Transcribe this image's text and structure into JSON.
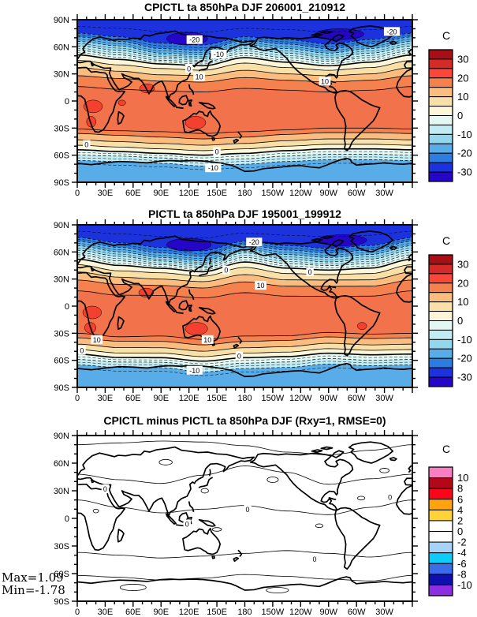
{
  "figure": {
    "description": "Three-panel global contour-map comparison of 850hPa air temperature (ta), DJF means",
    "axes": {
      "lat_tick_labels": [
        "90N",
        "60N",
        "30N",
        "0",
        "30S",
        "60S",
        "90S"
      ],
      "lon_tick_labels": [
        "0",
        "30E",
        "60E",
        "90E",
        "120E",
        "150E",
        "180",
        "150W",
        "120W",
        "90W",
        "60W",
        "30W"
      ]
    },
    "map_extra_colors": {
      "tropical_band": "#f2724c",
      "hot_patch": "#f4402f",
      "coast": "#000000"
    },
    "panels": [
      {
        "title": "CPICTL ta 850hPa DJF 206001_210912",
        "colorbar": {
          "unit": "C",
          "tick_labels": [
            "30",
            "20",
            "10",
            "0",
            "-10",
            "-20",
            "-30"
          ],
          "colors": [
            "#a50f15",
            "#d62a26",
            "#f9483a",
            "#f5824e",
            "#fbbc7f",
            "#f9e0a8",
            "#fdf6d8",
            "#e3f7f3",
            "#c1ecf3",
            "#92d7ee",
            "#58ace8",
            "#2d7ce0",
            "#1b32dd",
            "#2506c8"
          ]
        },
        "contour_labels": [
          {
            "text": "-20",
            "lon": 126,
            "lat": 68
          },
          {
            "text": "-20",
            "lon": 338,
            "lat": 77
          },
          {
            "text": "-10",
            "lon": 152,
            "lat": 52
          },
          {
            "text": "0",
            "lon": 120,
            "lat": 36
          },
          {
            "text": "10",
            "lon": 131,
            "lat": 27
          },
          {
            "text": "10",
            "lon": 266,
            "lat": 22
          },
          {
            "text": "0",
            "lon": 10,
            "lat": -48
          },
          {
            "text": "0",
            "lon": 150,
            "lat": -56
          },
          {
            "text": "-10",
            "lon": 146,
            "lat": -74
          }
        ]
      },
      {
        "title": "PICTL ta 850hPa DJF 195001_199912",
        "colorbar": {
          "unit": "C",
          "tick_labels": [
            "30",
            "20",
            "10",
            "0",
            "-10",
            "-20",
            "-30"
          ],
          "colors": [
            "#a50f15",
            "#d62a26",
            "#f9483a",
            "#f5824e",
            "#fbbc7f",
            "#f9e0a8",
            "#fdf6d8",
            "#e3f7f3",
            "#c1ecf3",
            "#92d7ee",
            "#58ace8",
            "#2d7ce0",
            "#1b32dd",
            "#2506c8"
          ]
        },
        "contour_labels": [
          {
            "text": "-20",
            "lon": 190,
            "lat": 71
          },
          {
            "text": "0",
            "lon": 160,
            "lat": 40
          },
          {
            "text": "0",
            "lon": 250,
            "lat": 38
          },
          {
            "text": "10",
            "lon": 197,
            "lat": 23
          },
          {
            "text": "10",
            "lon": 21,
            "lat": -37
          },
          {
            "text": "10",
            "lon": 140,
            "lat": -37
          },
          {
            "text": "0",
            "lon": 5,
            "lat": -49
          },
          {
            "text": "0",
            "lon": 174,
            "lat": -55
          },
          {
            "text": "-10",
            "lon": 126,
            "lat": -71
          }
        ]
      },
      {
        "title": "CPICTL minus PICTL ta 850hPa DJF (Rxy=1, RMSE=0)",
        "colorbar": {
          "unit": "C",
          "tick_labels": [
            "10",
            "8",
            "6",
            "4",
            "2",
            "0",
            "-2",
            "-4",
            "-6",
            "-8",
            "-10"
          ],
          "colors": [
            "#f97fc4",
            "#b50717",
            "#fb0618",
            "#ffa40e",
            "#fdd338",
            "#ffffff",
            "#ffffff",
            "#a8d3f8",
            "#0ecbfa",
            "#3a6be8",
            "#0f0faf",
            "#8b2fe0"
          ]
        },
        "contour_labels": [
          {
            "text": "0",
            "lon": 183,
            "lat": 10
          },
          {
            "text": "0",
            "lon": 336,
            "lat": 23
          },
          {
            "text": "0",
            "lon": 30,
            "lat": 32
          },
          {
            "text": "0",
            "lon": 118,
            "lat": -6
          },
          {
            "text": "0",
            "lon": 255,
            "lat": -44
          }
        ],
        "stats": {
          "max": "Max=1.09",
          "min": "Min=-1.78"
        }
      }
    ]
  },
  "chart_data": [
    {
      "type": "heatmap",
      "subtype": "filled_contour_world_map",
      "title": "CPICTL ta 850hPa DJF 206001_210912",
      "variable": "ta",
      "pressure_level": "850hPa",
      "season": "DJF",
      "period": "206001_210912",
      "units": "C",
      "x_ticks": [
        "0",
        "30E",
        "60E",
        "90E",
        "120E",
        "150E",
        "180",
        "150W",
        "120W",
        "90W",
        "60W",
        "30W"
      ],
      "y_ticks": [
        "90N",
        "60N",
        "30N",
        "0",
        "30S",
        "60S",
        "90S"
      ],
      "colorbar_labels": [
        30,
        20,
        10,
        0,
        -10,
        -20,
        -30
      ],
      "contour_interval": 5,
      "visible_contour_label_values": [
        -20,
        -10,
        0,
        10
      ],
      "field_summary": "Zonal temperature field: Arctic (DJF winter) below -30C over Siberia and N Canada; 0C contour near 40-50N; tropics 20-25C with >25C cells over southern Africa, Australia, S Asia; Southern Ocean 0C near 55S; Antarctic coast below -10C."
    },
    {
      "type": "heatmap",
      "subtype": "filled_contour_world_map",
      "title": "PICTL ta 850hPa DJF 195001_199912",
      "variable": "ta",
      "pressure_level": "850hPa",
      "season": "DJF",
      "period": "195001_199912",
      "units": "C",
      "x_ticks": [
        "0",
        "30E",
        "60E",
        "90E",
        "120E",
        "150E",
        "180",
        "150W",
        "120W",
        "90W",
        "60W",
        "30W"
      ],
      "y_ticks": [
        "90N",
        "60N",
        "30N",
        "0",
        "30S",
        "60S",
        "90S"
      ],
      "colorbar_labels": [
        30,
        20,
        10,
        0,
        -10,
        -20,
        -30
      ],
      "contour_interval": 5,
      "visible_contour_label_values": [
        -20,
        -10,
        0,
        10
      ],
      "field_summary": "Nearly identical zonal temperature field to CPICTL panel; differences are below the 2C contour interval of the difference map."
    },
    {
      "type": "heatmap",
      "subtype": "contour_difference_world_map",
      "title": "CPICTL minus PICTL ta 850hPa DJF (Rxy=1, RMSE=0)",
      "variable": "ta difference",
      "pressure_level": "850hPa",
      "season": "DJF",
      "units": "C",
      "x_ticks": [
        "0",
        "30E",
        "60E",
        "90E",
        "120E",
        "150E",
        "180",
        "150W",
        "120W",
        "90W",
        "60W",
        "30W"
      ],
      "y_ticks": [
        "90N",
        "60N",
        "30N",
        "0",
        "30S",
        "60S",
        "90S"
      ],
      "colorbar_labels": [
        10,
        8,
        6,
        4,
        2,
        0,
        -2,
        -4,
        -6,
        -8,
        -10
      ],
      "statistics": {
        "Rxy": 1,
        "RMSE": 0,
        "max": 1.09,
        "min": -1.78
      },
      "field_summary": "Difference everywhere within -2..+2C (white band), so map is unfilled; only meandering zero contours are visible."
    }
  ]
}
